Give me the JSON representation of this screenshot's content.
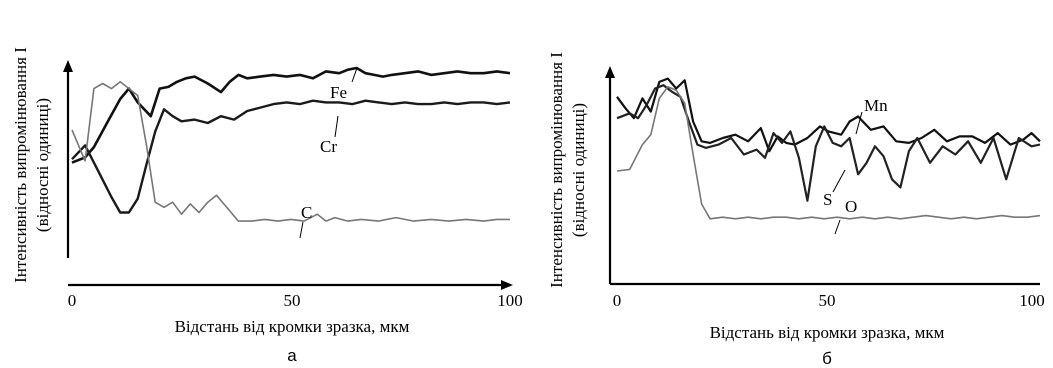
{
  "chart_data": [
    {
      "type": "line",
      "panel_label": "а",
      "xlabel": "Відстань від кромки зразка, мкм",
      "ylabel": "Інтенсивність випромінювання І",
      "ylabel2": "(відносні одиниці)",
      "xlim": [
        0,
        100
      ],
      "ylim": [
        0,
        100
      ],
      "xticks": [
        "0",
        "50",
        "100"
      ],
      "series": [
        {
          "name": "Fe",
          "color": "#111111",
          "x": [
            0,
            3,
            5,
            8,
            11,
            13,
            15,
            18,
            20,
            22,
            24,
            26,
            28,
            31,
            34,
            36,
            38,
            40,
            43,
            46,
            49,
            52,
            55,
            58,
            61,
            63,
            65,
            67,
            69,
            71,
            73,
            76,
            79,
            82,
            85,
            88,
            91,
            94,
            97,
            100
          ],
          "y": [
            45,
            48,
            54,
            68,
            82,
            88,
            80,
            72,
            88,
            89,
            92,
            94,
            95,
            91,
            86,
            92,
            96,
            94,
            95,
            96,
            95,
            96,
            94,
            98,
            97,
            99,
            100,
            97,
            96,
            95,
            96,
            97,
            98,
            96,
            97,
            98,
            97,
            97,
            98,
            97
          ]
        },
        {
          "name": "Cr",
          "color": "#1a1a1a",
          "x": [
            0,
            3,
            6,
            9,
            11,
            13,
            15,
            17,
            19,
            21,
            23,
            25,
            28,
            31,
            34,
            37,
            40,
            43,
            46,
            49,
            52,
            55,
            58,
            61,
            64,
            67,
            70,
            73,
            76,
            79,
            82,
            85,
            88,
            91,
            94,
            97,
            100
          ],
          "y": [
            47,
            55,
            40,
            25,
            16,
            16,
            24,
            44,
            63,
            76,
            72,
            69,
            70,
            68,
            72,
            70,
            75,
            77,
            79,
            80,
            79,
            81,
            80,
            80,
            79,
            81,
            80,
            79,
            80,
            79,
            79,
            80,
            79,
            80,
            80,
            79,
            80
          ]
        },
        {
          "name": "C",
          "color": "#777777",
          "x": [
            0,
            3,
            5,
            7,
            9,
            11,
            13,
            15,
            17,
            19,
            21,
            23,
            25,
            27,
            29,
            31,
            33,
            35,
            38,
            41,
            44,
            47,
            50,
            53,
            56,
            58,
            60,
            63,
            66,
            70,
            74,
            78,
            82,
            86,
            90,
            94,
            97,
            100
          ],
          "y": [
            64,
            46,
            88,
            91,
            88,
            92,
            88,
            84,
            55,
            22,
            19,
            22,
            15,
            21,
            16,
            22,
            26,
            20,
            11,
            11,
            12,
            11,
            12,
            11,
            15,
            11,
            13,
            11,
            12,
            11,
            13,
            11,
            12,
            11,
            12,
            11,
            12,
            12
          ]
        }
      ],
      "annotations": [
        {
          "text": "Fe",
          "series": "Fe"
        },
        {
          "text": "Cr",
          "series": "Cr"
        },
        {
          "text": "C",
          "series": "C"
        }
      ]
    },
    {
      "type": "line",
      "panel_label": "б",
      "xlabel": "Відстань від кромки зразка, мкм",
      "ylabel": "Інтенсивність випромінювання І",
      "ylabel2": "(відносні одиниці)",
      "xlim": [
        0,
        100
      ],
      "ylim": [
        0,
        100
      ],
      "xticks": [
        "0",
        "50",
        "100"
      ],
      "series": [
        {
          "name": "Mn",
          "color": "#111111",
          "x": [
            0,
            2,
            4,
            6,
            8,
            10,
            12,
            14,
            16,
            18,
            20,
            22,
            25,
            28,
            31,
            34,
            36,
            38,
            40,
            42,
            45,
            48,
            50,
            53,
            55,
            57,
            60,
            63,
            66,
            69,
            72,
            75,
            78,
            81,
            84,
            87,
            90,
            93,
            96,
            98,
            100
          ],
          "y": [
            85,
            78,
            72,
            84,
            76,
            94,
            96,
            90,
            95,
            70,
            58,
            57,
            60,
            62,
            58,
            66,
            52,
            61,
            57,
            56,
            60,
            67,
            64,
            62,
            70,
            73,
            65,
            67,
            58,
            57,
            60,
            65,
            58,
            61,
            61,
            57,
            63,
            56,
            59,
            63,
            58
          ]
        },
        {
          "name": "S",
          "color": "#222222",
          "x": [
            0,
            3,
            5,
            7,
            9,
            11,
            13,
            15,
            17,
            19,
            21,
            24,
            27,
            30,
            33,
            35,
            37,
            39,
            41,
            43,
            45,
            47,
            49,
            51,
            53,
            55,
            57,
            59,
            61,
            63,
            65,
            67,
            69,
            71,
            74,
            77,
            80,
            83,
            86,
            89,
            92,
            95,
            98,
            100
          ],
          "y": [
            72,
            75,
            72,
            80,
            90,
            92,
            88,
            85,
            70,
            56,
            54,
            56,
            60,
            50,
            53,
            48,
            63,
            57,
            64,
            48,
            22,
            55,
            67,
            57,
            55,
            60,
            38,
            45,
            55,
            49,
            35,
            30,
            52,
            60,
            45,
            55,
            50,
            58,
            45,
            60,
            35,
            60,
            55,
            56
          ]
        },
        {
          "name": "O",
          "color": "#777777",
          "x": [
            0,
            3,
            6,
            8,
            10,
            12,
            14,
            16,
            18,
            20,
            22,
            25,
            28,
            31,
            34,
            37,
            40,
            43,
            46,
            49,
            52,
            55,
            58,
            61,
            64,
            67,
            70,
            73,
            76,
            79,
            82,
            85,
            88,
            91,
            94,
            97,
            100
          ],
          "y": [
            40,
            41,
            56,
            62,
            84,
            91,
            89,
            81,
            50,
            20,
            11,
            12,
            11,
            12,
            11,
            12,
            12,
            11,
            12,
            11,
            12,
            11,
            12,
            11,
            12,
            11,
            12,
            13,
            12,
            11,
            12,
            11,
            12,
            13,
            12,
            12,
            13
          ]
        }
      ],
      "annotations": [
        {
          "text": "Mn",
          "series": "Mn"
        },
        {
          "text": "S",
          "series": "S"
        },
        {
          "text": "O",
          "series": "O"
        }
      ]
    }
  ]
}
